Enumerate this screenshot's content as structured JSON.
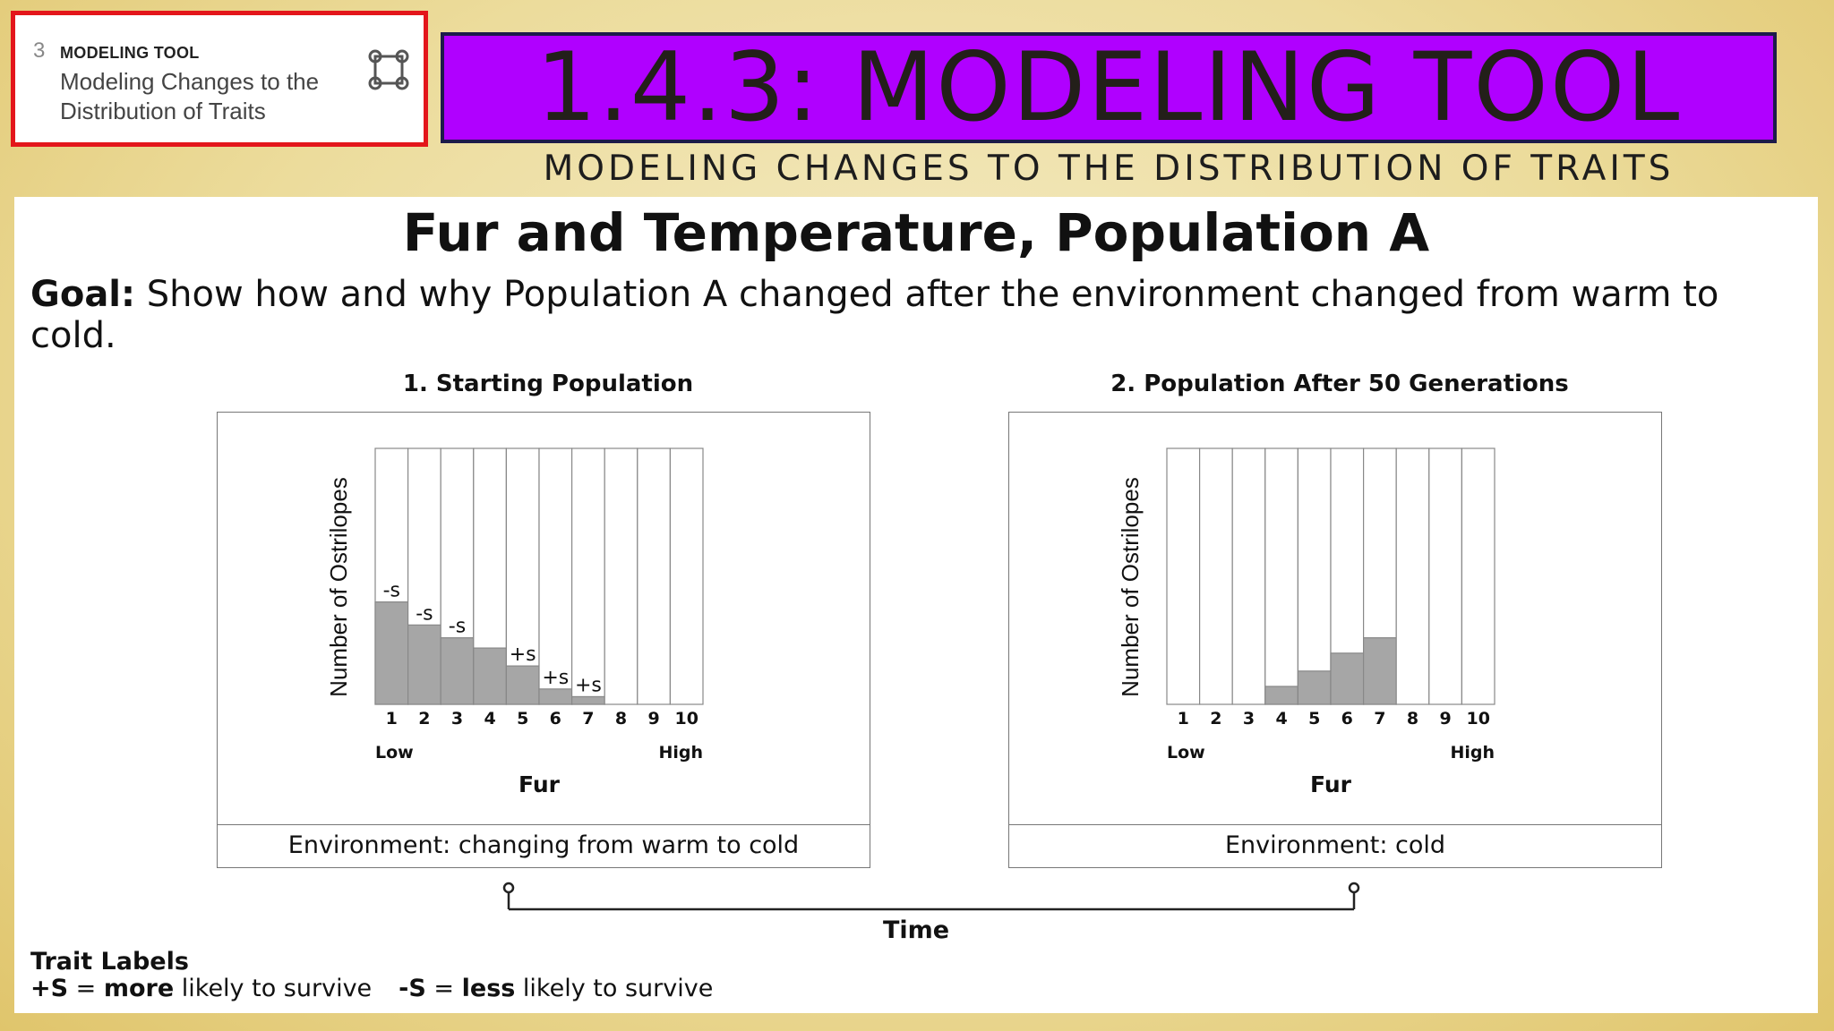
{
  "lesson_card": {
    "number": "3",
    "kicker": "MODELING TOOL",
    "name": "Modeling Changes to the Distribution of Traits",
    "icon": "modeling-tool-icon",
    "border_color": "#e3161b"
  },
  "banner": {
    "title": "1.4.3: MODELING TOOL",
    "subtitle": "MODELING CHANGES TO THE DISTRIBUTION OF TRAITS",
    "background": "#b000ff"
  },
  "slide": {
    "title": "Fur and Temperature, Population A",
    "goal_label": "Goal:",
    "goal_text": " Show how and why Population A changed after the environment changed from warm to cold."
  },
  "chart_data": [
    {
      "type": "bar",
      "heading": "1. Starting Population",
      "categories": [
        "1",
        "2",
        "3",
        "4",
        "5",
        "6",
        "7",
        "8",
        "9",
        "10"
      ],
      "values": [
        4,
        3.1,
        2.6,
        2.2,
        1.5,
        0.6,
        0.3,
        0,
        0,
        0
      ],
      "bar_labels": [
        "-s",
        "-s",
        "-s",
        "",
        "+s",
        "+s",
        "+s",
        "",
        "",
        ""
      ],
      "ylim": [
        0,
        10
      ],
      "ylabel": "Number of Ostrilopes",
      "xlabel": "Fur",
      "x_low": "Low",
      "x_high": "High",
      "environment": "Environment: changing from warm to cold",
      "bar_color": "#a6a6a6"
    },
    {
      "type": "bar",
      "heading": "2. Population After 50 Generations",
      "categories": [
        "1",
        "2",
        "3",
        "4",
        "5",
        "6",
        "7",
        "8",
        "9",
        "10"
      ],
      "values": [
        0,
        0,
        0,
        0.7,
        1.3,
        2,
        2.6,
        0,
        0,
        0
      ],
      "bar_labels": [
        "",
        "",
        "",
        "",
        "",
        "",
        "",
        "",
        "",
        ""
      ],
      "ylim": [
        0,
        10
      ],
      "ylabel": "Number of Ostrilopes",
      "xlabel": "Fur",
      "x_low": "Low",
      "x_high": "High",
      "environment": "Environment: cold",
      "bar_color": "#a6a6a6"
    }
  ],
  "timeline": {
    "label": "Time"
  },
  "legend": {
    "title": "Trait Labels",
    "plus_symbol": "+S",
    "plus_eq": " = ",
    "plus_bold": "more",
    "plus_rest": " likely to survive",
    "minus_symbol": "-S",
    "minus_eq": " = ",
    "minus_bold": "less",
    "minus_rest": " likely to survive"
  }
}
